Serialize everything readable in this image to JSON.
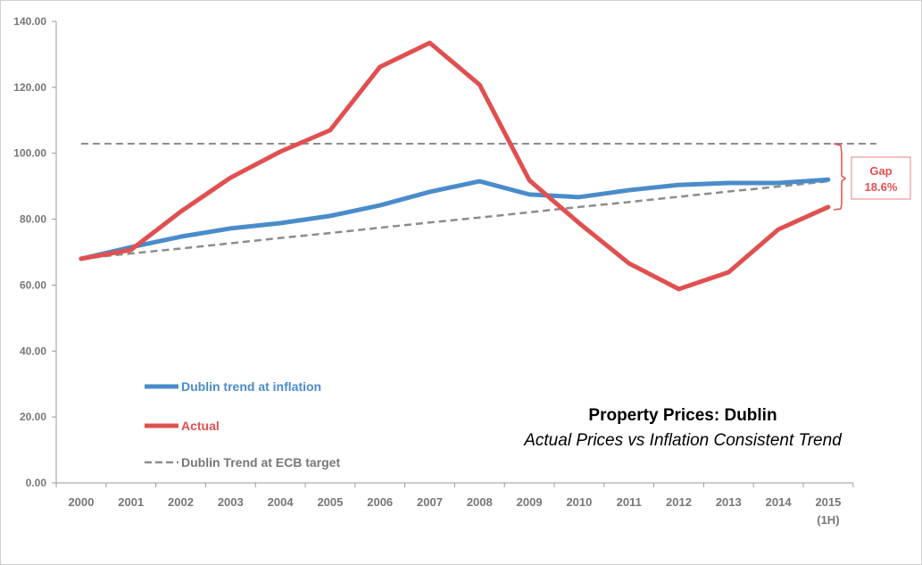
{
  "chart_data": {
    "type": "line",
    "title": "Property Prices: Dublin",
    "subtitle": "Actual Prices vs Inflation Consistent Trend",
    "categories": [
      "2000",
      "2001",
      "2002",
      "2003",
      "2004",
      "2005",
      "2006",
      "2007",
      "2008",
      "2009",
      "2010",
      "2011",
      "2012",
      "2013",
      "2014",
      "2015"
    ],
    "category_sublabels": {
      "15": "(1H)"
    },
    "ylim": [
      0,
      140
    ],
    "yticks": [
      "0.00",
      "20.00",
      "40.00",
      "60.00",
      "80.00",
      "100.00",
      "120.00",
      "140.00"
    ],
    "grid": false,
    "legend_placement": "bottom-left",
    "series": [
      {
        "name": "Dublin trend at inflation",
        "color": "#4a8ccb",
        "style": "solid",
        "values": [
          68.0,
          71.5,
          74.7,
          77.2,
          78.8,
          81.0,
          84.2,
          88.3,
          91.5,
          87.5,
          86.7,
          88.8,
          90.4,
          91.0,
          91.0,
          92.0
        ]
      },
      {
        "name": "Actual",
        "color": "#e05050",
        "style": "solid",
        "values": [
          68.0,
          70.7,
          82.3,
          92.6,
          100.5,
          107.0,
          126.2,
          133.5,
          120.8,
          91.8,
          78.8,
          66.6,
          58.8,
          63.9,
          76.9,
          83.7
        ]
      },
      {
        "name": "Dublin Trend at ECB target",
        "color": "#8c8c8c",
        "style": "dashed",
        "values": [
          68.0,
          69.6,
          71.1,
          72.7,
          74.3,
          75.8,
          77.4,
          79.0,
          80.5,
          82.1,
          83.7,
          85.2,
          86.8,
          88.4,
          89.9,
          91.5
        ]
      }
    ],
    "reference_line": {
      "value": 102.9,
      "color": "#8c8c8c",
      "style": "dashed"
    },
    "annotation": {
      "label": "Gap",
      "value": "18.6%",
      "color": "#e05050"
    }
  }
}
